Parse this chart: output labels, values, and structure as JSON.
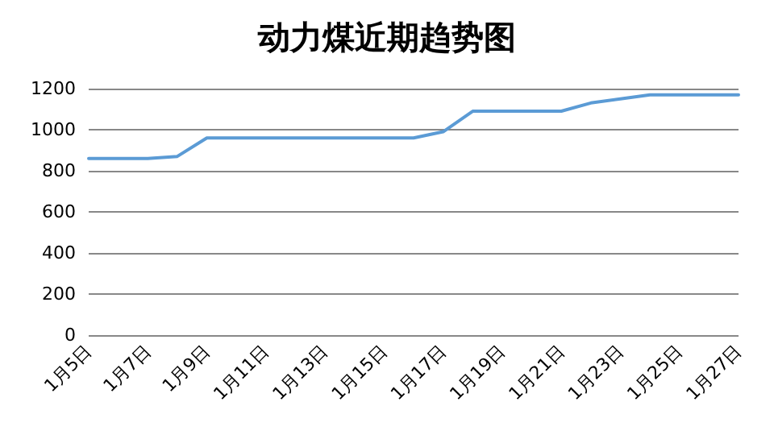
{
  "chart_data": {
    "type": "line",
    "title": "动力煤近期趋势图",
    "categories": [
      "1月5日",
      null,
      "1月7日",
      null,
      "1月9日",
      null,
      "1月11日",
      null,
      "1月13日",
      null,
      "1月15日",
      null,
      "1月17日",
      null,
      "1月19日",
      null,
      "1月21日",
      null,
      "1月23日",
      null,
      "1月25日",
      null,
      "1月27日"
    ],
    "series": [
      {
        "color": "#5b9bd5",
        "values": [
          860,
          860,
          860,
          870,
          960,
          960,
          960,
          960,
          960,
          960,
          960,
          960,
          990,
          1090,
          1090,
          1090,
          1090,
          1130,
          1150,
          1170,
          1170,
          1170,
          1170
        ]
      }
    ],
    "ylim": [
      0,
      1200
    ],
    "yticks": [
      0,
      200,
      400,
      600,
      800,
      1000,
      1200
    ],
    "grid": "y",
    "marker": "none",
    "line_style": "solid"
  }
}
